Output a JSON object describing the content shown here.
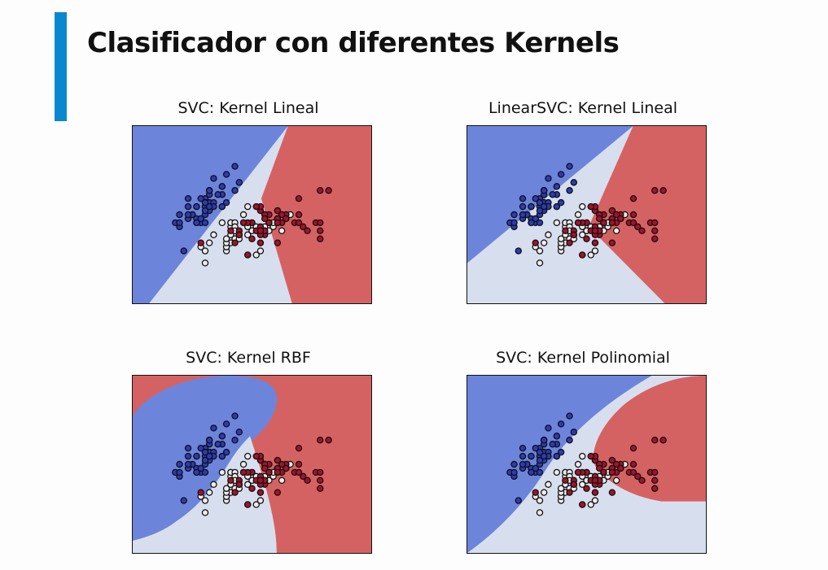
{
  "slide": {
    "title": "Clasificador con diferentes Kernels"
  },
  "colors": {
    "accent_bar": "#0a88cf",
    "region_class0": "#6d84db",
    "region_class1": "#d7dfee",
    "region_class2": "#d56262",
    "point_class0": "#2b3bb5",
    "point_class1": "#ececec",
    "point_class2": "#a5112a",
    "point_edge": "#111111"
  },
  "chart_data": [
    {
      "type": "scatter",
      "title": "SVC: Kernel Lineal",
      "decision_regions": "linear",
      "xlim": [
        3.3,
        8.9
      ],
      "ylim": [
        1.0,
        5.4
      ],
      "xlabel": "",
      "ylabel": "",
      "grid": false
    },
    {
      "type": "scatter",
      "title": "LinearSVC: Kernel Lineal",
      "decision_regions": "linear (one-vs-rest)",
      "xlim": [
        3.3,
        8.9
      ],
      "ylim": [
        1.0,
        5.4
      ],
      "xlabel": "",
      "ylabel": "",
      "grid": false
    },
    {
      "type": "scatter",
      "title": "SVC: Kernel RBF",
      "decision_regions": "rbf",
      "xlim": [
        3.3,
        8.9
      ],
      "ylim": [
        1.0,
        5.4
      ],
      "xlabel": "",
      "ylabel": "",
      "grid": false
    },
    {
      "type": "scatter",
      "title": "SVC: Kernel Polinomial",
      "decision_regions": "polynomial",
      "xlim": [
        3.3,
        8.9
      ],
      "ylim": [
        1.0,
        5.4
      ],
      "xlabel": "",
      "ylabel": "",
      "grid": false
    }
  ],
  "points": {
    "class0": [
      [
        5.1,
        3.5
      ],
      [
        4.9,
        3.0
      ],
      [
        4.7,
        3.2
      ],
      [
        4.6,
        3.1
      ],
      [
        5.0,
        3.6
      ],
      [
        5.4,
        3.9
      ],
      [
        4.6,
        3.4
      ],
      [
        5.0,
        3.4
      ],
      [
        4.4,
        2.9
      ],
      [
        4.9,
        3.1
      ],
      [
        5.4,
        3.7
      ],
      [
        4.8,
        3.4
      ],
      [
        4.8,
        3.0
      ],
      [
        4.3,
        3.0
      ],
      [
        5.8,
        4.0
      ],
      [
        5.7,
        4.4
      ],
      [
        5.4,
        3.9
      ],
      [
        5.1,
        3.5
      ],
      [
        5.7,
        3.8
      ],
      [
        5.1,
        3.8
      ],
      [
        5.4,
        3.4
      ],
      [
        5.1,
        3.7
      ],
      [
        4.6,
        3.6
      ],
      [
        5.1,
        3.3
      ],
      [
        4.8,
        3.4
      ],
      [
        5.0,
        3.0
      ],
      [
        5.0,
        3.4
      ],
      [
        5.2,
        3.5
      ],
      [
        5.2,
        3.4
      ],
      [
        4.7,
        3.2
      ],
      [
        4.8,
        3.1
      ],
      [
        5.4,
        3.4
      ],
      [
        5.2,
        4.1
      ],
      [
        5.5,
        4.2
      ],
      [
        4.9,
        3.1
      ],
      [
        5.0,
        3.2
      ],
      [
        5.5,
        3.5
      ],
      [
        4.9,
        3.6
      ],
      [
        4.4,
        3.0
      ],
      [
        5.1,
        3.4
      ],
      [
        5.0,
        3.5
      ],
      [
        4.5,
        2.3
      ],
      [
        4.4,
        3.2
      ],
      [
        5.0,
        3.5
      ],
      [
        5.1,
        3.8
      ],
      [
        4.8,
        3.0
      ],
      [
        5.1,
        3.8
      ],
      [
        4.6,
        3.2
      ],
      [
        5.3,
        3.7
      ],
      [
        5.0,
        3.3
      ]
    ],
    "class1": [
      [
        7.0,
        3.2
      ],
      [
        6.4,
        3.2
      ],
      [
        6.9,
        3.1
      ],
      [
        5.5,
        2.3
      ],
      [
        6.5,
        2.8
      ],
      [
        5.7,
        2.8
      ],
      [
        6.3,
        3.3
      ],
      [
        4.9,
        2.4
      ],
      [
        6.6,
        2.9
      ],
      [
        5.2,
        2.7
      ],
      [
        5.0,
        2.0
      ],
      [
        5.9,
        3.0
      ],
      [
        6.0,
        2.2
      ],
      [
        6.1,
        2.9
      ],
      [
        5.6,
        2.9
      ],
      [
        6.7,
        3.1
      ],
      [
        5.6,
        3.0
      ],
      [
        5.8,
        2.7
      ],
      [
        6.2,
        2.2
      ],
      [
        5.6,
        2.5
      ],
      [
        5.9,
        3.2
      ],
      [
        6.1,
        2.8
      ],
      [
        6.3,
        2.5
      ],
      [
        6.1,
        2.8
      ],
      [
        6.4,
        2.9
      ],
      [
        6.6,
        3.0
      ],
      [
        6.8,
        2.8
      ],
      [
        6.7,
        3.0
      ],
      [
        6.0,
        2.9
      ],
      [
        5.7,
        2.6
      ],
      [
        5.5,
        2.4
      ],
      [
        5.5,
        2.4
      ],
      [
        5.8,
        2.7
      ],
      [
        6.0,
        2.7
      ],
      [
        5.4,
        3.0
      ],
      [
        6.0,
        3.4
      ],
      [
        6.7,
        3.1
      ],
      [
        6.3,
        2.3
      ],
      [
        5.6,
        3.0
      ],
      [
        5.5,
        2.5
      ],
      [
        5.5,
        2.6
      ],
      [
        6.1,
        3.0
      ],
      [
        5.8,
        2.6
      ],
      [
        5.0,
        2.3
      ],
      [
        5.6,
        2.7
      ],
      [
        5.7,
        3.0
      ],
      [
        5.7,
        2.9
      ],
      [
        6.2,
        2.9
      ],
      [
        5.1,
        2.5
      ],
      [
        5.7,
        2.8
      ]
    ],
    "class2": [
      [
        6.3,
        3.3
      ],
      [
        5.8,
        2.7
      ],
      [
        7.1,
        3.0
      ],
      [
        6.3,
        2.9
      ],
      [
        6.5,
        3.0
      ],
      [
        7.6,
        3.0
      ],
      [
        4.9,
        2.5
      ],
      [
        7.3,
        2.9
      ],
      [
        6.7,
        2.5
      ],
      [
        7.2,
        3.6
      ],
      [
        6.5,
        3.2
      ],
      [
        6.4,
        2.7
      ],
      [
        6.8,
        3.0
      ],
      [
        5.7,
        2.5
      ],
      [
        5.8,
        2.8
      ],
      [
        6.4,
        3.2
      ],
      [
        6.5,
        3.0
      ],
      [
        7.7,
        3.8
      ],
      [
        7.7,
        2.6
      ],
      [
        6.0,
        2.2
      ],
      [
        6.9,
        3.2
      ],
      [
        5.6,
        2.8
      ],
      [
        7.7,
        2.8
      ],
      [
        6.3,
        2.7
      ],
      [
        6.7,
        3.3
      ],
      [
        7.2,
        3.2
      ],
      [
        6.2,
        2.8
      ],
      [
        6.1,
        3.0
      ],
      [
        6.4,
        2.8
      ],
      [
        7.2,
        3.0
      ],
      [
        7.4,
        2.8
      ],
      [
        7.9,
        3.8
      ],
      [
        6.4,
        2.8
      ],
      [
        6.3,
        2.8
      ],
      [
        6.1,
        2.6
      ],
      [
        7.7,
        3.0
      ],
      [
        6.3,
        3.4
      ],
      [
        6.4,
        3.1
      ],
      [
        6.0,
        3.0
      ],
      [
        6.9,
        3.1
      ],
      [
        6.7,
        3.1
      ],
      [
        6.9,
        3.1
      ],
      [
        5.8,
        2.7
      ],
      [
        6.8,
        3.2
      ],
      [
        6.7,
        3.3
      ],
      [
        6.7,
        3.0
      ],
      [
        6.3,
        2.5
      ],
      [
        6.5,
        3.0
      ],
      [
        6.2,
        3.4
      ],
      [
        5.9,
        3.0
      ]
    ]
  }
}
